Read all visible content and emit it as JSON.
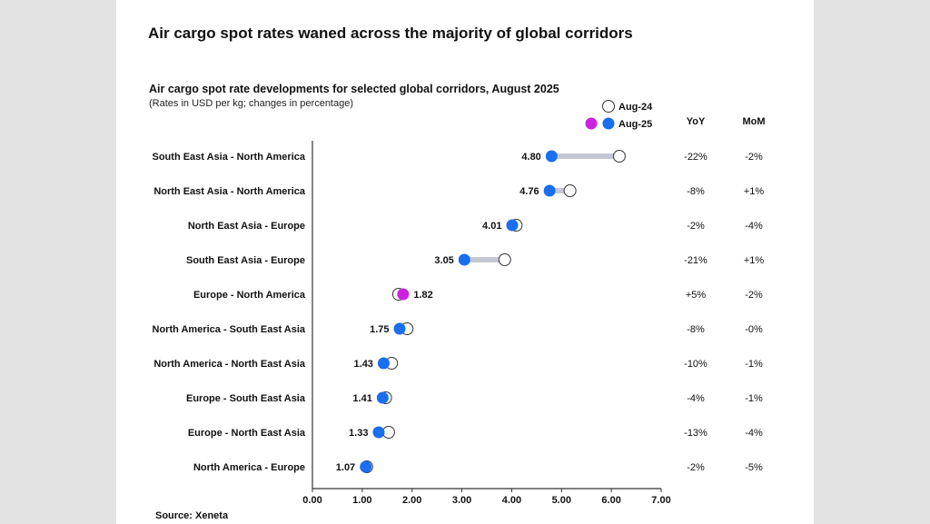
{
  "header": {
    "title": "Air cargo spot rates waned across the majority of global corridors"
  },
  "source_note": "Source: Xeneta",
  "colors": {
    "aug25": "#1a6ef0",
    "aug25_highlight": "#cc22dd",
    "aug24_fill": "#ffffff",
    "aug24_stroke": "#333333",
    "connector": "#c5c8d2",
    "axis": "#333333"
  },
  "chart_data": {
    "type": "dumbbell",
    "title": "Air cargo spot rate developments for selected global corridors, August 2025",
    "subtitle": "(Rates in USD per kg; changes in percentage)",
    "xlim": [
      0,
      7
    ],
    "xticks": [
      "0.00",
      "1.00",
      "2.00",
      "3.00",
      "4.00",
      "5.00",
      "6.00",
      "7.00"
    ],
    "legend": [
      {
        "name": "Aug-24",
        "style": "hollow"
      },
      {
        "name": "Aug-25",
        "style": "filled"
      }
    ],
    "legend_position": "top-right",
    "columns": [
      "YoY",
      "MoM"
    ],
    "categories": [
      "South East Asia - North America",
      "North East Asia  - North America",
      "North East Asia  - Europe",
      "South East Asia - Europe",
      "Europe - North America",
      "North America - South East Asia",
      "North America - North East Asia",
      "Europe - South East Asia",
      "Europe - North East Asia",
      "North America - Europe"
    ],
    "series": [
      {
        "name": "Aug-24",
        "values": [
          6.16,
          5.17,
          4.09,
          3.86,
          1.73,
          1.9,
          1.59,
          1.47,
          1.53,
          1.09
        ]
      },
      {
        "name": "Aug-25",
        "values": [
          4.8,
          4.76,
          4.01,
          3.05,
          1.82,
          1.75,
          1.43,
          1.41,
          1.33,
          1.07
        ]
      }
    ],
    "aug25_labels": [
      "4.80",
      "4.76",
      "4.01",
      "3.05",
      "1.82",
      "1.75",
      "1.43",
      "1.41",
      "1.33",
      "1.07"
    ],
    "label_side": [
      "left",
      "left",
      "left",
      "left",
      "right",
      "left",
      "left",
      "left",
      "left",
      "left"
    ],
    "highlight": [
      false,
      false,
      false,
      false,
      true,
      false,
      false,
      false,
      false,
      false
    ],
    "yoy": [
      "-22%",
      "-8%",
      "-2%",
      "-21%",
      "+5%",
      "-8%",
      "-10%",
      "-4%",
      "-13%",
      "-2%"
    ],
    "mom": [
      "-2%",
      "+1%",
      "-4%",
      "+1%",
      "-2%",
      "-0%",
      "-1%",
      "-1%",
      "-4%",
      "-5%"
    ]
  }
}
